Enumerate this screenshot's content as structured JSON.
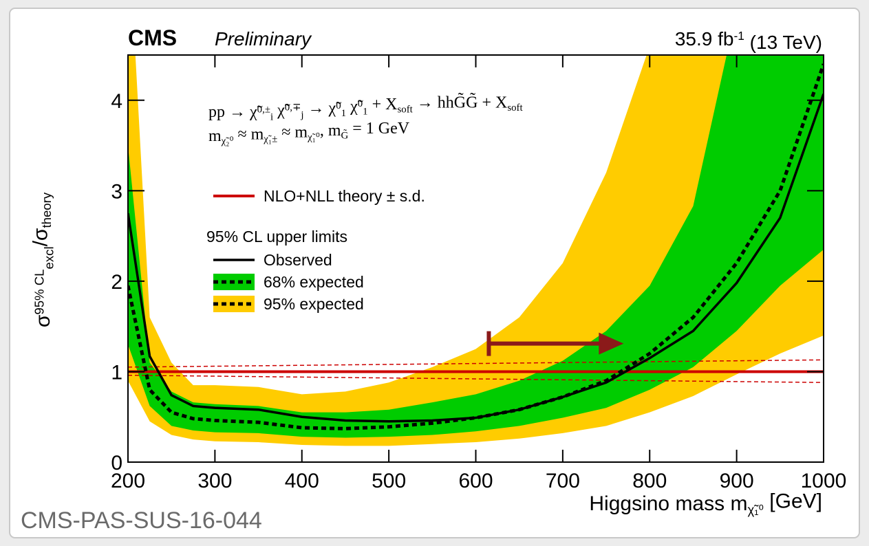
{
  "chart_data": {
    "type": "limit",
    "experiment": "CMS",
    "status": "Preliminary",
    "lumi": [
      {
        "text": "35.9 fb"
      },
      {
        "text": "-1",
        "script": "sup"
      },
      {
        "text": " (13 TeV)"
      }
    ],
    "process": [
      {
        "text": "pp → χ̃"
      },
      {
        "text": "0,±",
        "script": "sup"
      },
      {
        "text": "i",
        "script": "sub"
      },
      {
        "text": " χ̃"
      },
      {
        "text": "0,∓",
        "script": "sup"
      },
      {
        "text": "j",
        "script": "sub"
      },
      {
        "text": " → χ̃"
      },
      {
        "text": "0",
        "script": "sup"
      },
      {
        "text": "1",
        "script": "sub"
      },
      {
        "text": " χ̃"
      },
      {
        "text": "0",
        "script": "sup"
      },
      {
        "text": "1",
        "script": "sub"
      },
      {
        "text": " + X"
      },
      {
        "text": "soft",
        "script": "sub"
      },
      {
        "text": " → hhG̃G̃ + X"
      },
      {
        "text": "soft",
        "script": "sub"
      }
    ],
    "masses": [
      {
        "text": "m"
      },
      {
        "text": "χ̃₂⁰",
        "script": "sub"
      },
      {
        "text": " ≈ m"
      },
      {
        "text": "χ̃₁±",
        "script": "sub"
      },
      {
        "text": " ≈ m"
      },
      {
        "text": "χ̃₁⁰",
        "script": "sub"
      },
      {
        "text": ", m"
      },
      {
        "text": "G̃",
        "script": "sub"
      },
      {
        "text": " = 1 GeV"
      }
    ],
    "ylabel": [
      {
        "text": "σ"
      },
      {
        "text": "95% CL",
        "script": "sup"
      },
      {
        "text": "excl",
        "script": "sub"
      },
      {
        "text": "/σ"
      },
      {
        "text": "theory",
        "script": "sub"
      }
    ],
    "xlabel": [
      {
        "text": "Higgsino mass m"
      },
      {
        "text": "χ̃₁⁰",
        "script": "sub"
      },
      {
        "text": " [GeV]"
      }
    ],
    "footer": "CMS-PAS-SUS-16-044",
    "legend_header": "95% CL upper limits",
    "x": [
      200,
      225,
      250,
      275,
      300,
      350,
      400,
      450,
      500,
      550,
      600,
      650,
      700,
      750,
      800,
      850,
      900,
      950,
      1000
    ],
    "bands": [
      {
        "name": "95% expected",
        "color": "#ffcc00",
        "lower": [
          0.9,
          0.45,
          0.3,
          0.25,
          0.23,
          0.22,
          0.19,
          0.18,
          0.18,
          0.2,
          0.22,
          0.26,
          0.32,
          0.4,
          0.55,
          0.73,
          0.97,
          1.2,
          1.4
        ],
        "upper": [
          6,
          1.6,
          1.1,
          0.85,
          0.85,
          0.83,
          0.75,
          0.78,
          0.88,
          1.05,
          1.25,
          1.6,
          2.2,
          3.2,
          4.6,
          6,
          8,
          10,
          12
        ]
      },
      {
        "name": "68% expected",
        "color": "#00cc00",
        "lower": [
          1.3,
          0.62,
          0.4,
          0.35,
          0.33,
          0.32,
          0.28,
          0.27,
          0.28,
          0.3,
          0.34,
          0.4,
          0.49,
          0.6,
          0.8,
          1.05,
          1.45,
          1.95,
          2.35
        ],
        "upper": [
          3.5,
          1.1,
          0.78,
          0.66,
          0.64,
          0.62,
          0.55,
          0.55,
          0.58,
          0.66,
          0.75,
          0.9,
          1.12,
          1.45,
          1.95,
          2.83,
          5.0,
          6.2,
          7.5
        ]
      }
    ],
    "expected": [
      1.95,
      0.8,
      0.55,
      0.48,
      0.46,
      0.44,
      0.38,
      0.37,
      0.39,
      0.43,
      0.49,
      0.58,
      0.72,
      0.9,
      1.2,
      1.6,
      2.2,
      3.0,
      4.4
    ],
    "observed": {
      "name": "Observed",
      "color": "#000000",
      "values": [
        2.75,
        1.17,
        0.74,
        0.62,
        0.6,
        0.58,
        0.5,
        0.46,
        0.45,
        0.46,
        0.49,
        0.58,
        0.72,
        0.88,
        1.15,
        1.45,
        1.98,
        2.7,
        4.07
      ]
    },
    "theory": {
      "name": "NLO+NLL theory ± s.d.",
      "color": "#cc0000",
      "x": [
        200,
        1000
      ],
      "values": [
        1,
        1
      ],
      "upper": [
        1.05,
        1.13
      ],
      "lower": [
        0.96,
        0.88
      ]
    },
    "arrow": {
      "x": [
        615,
        770
      ],
      "y": 1.31,
      "color": "#8b1a1a"
    },
    "xlim": [
      200,
      1000
    ],
    "ylim": [
      0,
      4.5
    ],
    "xticks": [
      200,
      300,
      400,
      500,
      600,
      700,
      800,
      900,
      1000
    ],
    "yticks": [
      0,
      1,
      2,
      3,
      4
    ]
  }
}
